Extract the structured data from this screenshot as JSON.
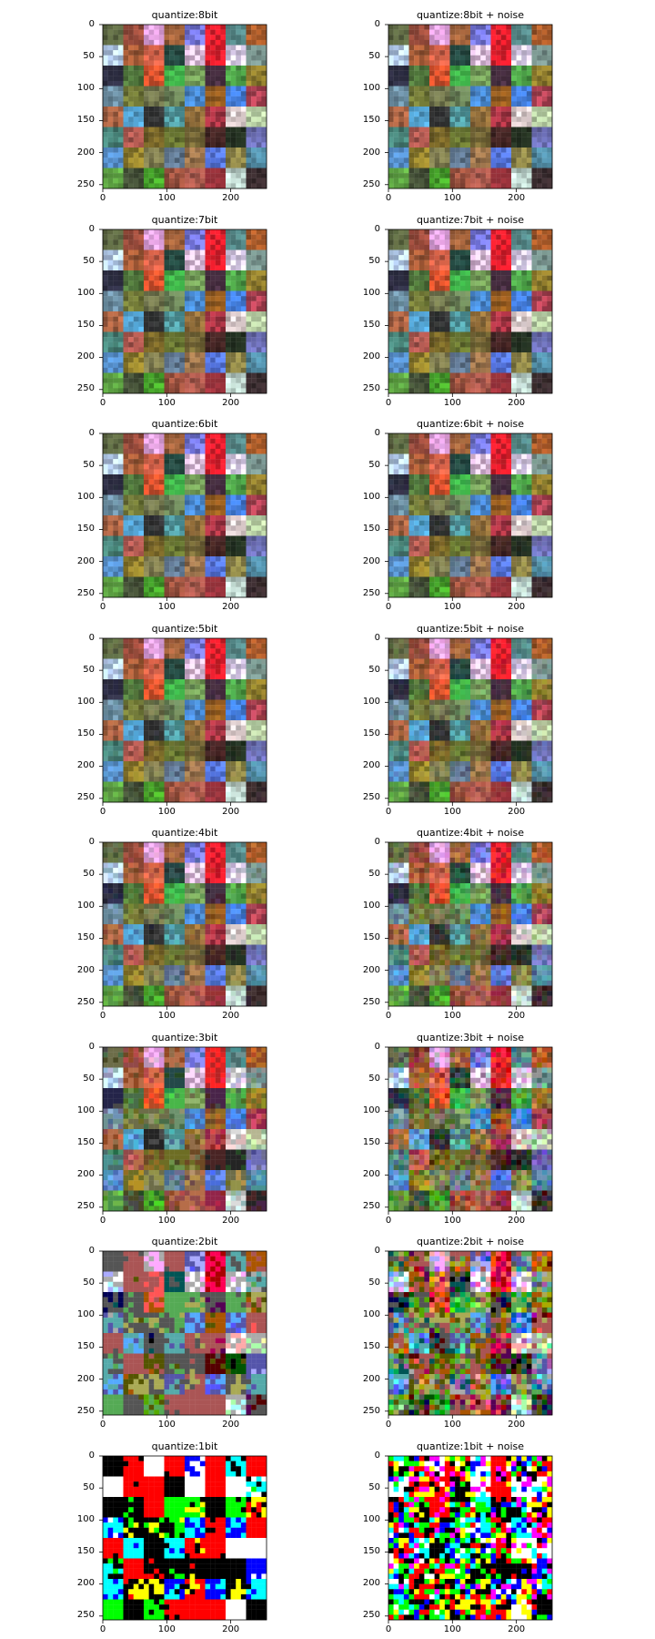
{
  "figure": {
    "layout": {
      "rows": 8,
      "cols": 2
    },
    "image_grid": {
      "tiles_per_side": 8,
      "pixels_per_side": 256
    }
  },
  "chart_data": [
    {
      "type": "image",
      "title": "quantize:8bit",
      "bits": 8,
      "noise": false,
      "xlim": [
        0,
        256
      ],
      "ylim": [
        256,
        0
      ],
      "xticks": [
        0,
        100,
        200
      ],
      "yticks": [
        0,
        50,
        100,
        150,
        200,
        250
      ]
    },
    {
      "type": "image",
      "title": "quantize:8bit + noise",
      "bits": 8,
      "noise": true,
      "xlim": [
        0,
        256
      ],
      "ylim": [
        256,
        0
      ],
      "xticks": [
        0,
        100,
        200
      ],
      "yticks": [
        0,
        50,
        100,
        150,
        200,
        250
      ]
    },
    {
      "type": "image",
      "title": "quantize:7bit",
      "bits": 7,
      "noise": false,
      "xlim": [
        0,
        256
      ],
      "ylim": [
        256,
        0
      ],
      "xticks": [
        0,
        100,
        200
      ],
      "yticks": [
        0,
        50,
        100,
        150,
        200,
        250
      ]
    },
    {
      "type": "image",
      "title": "quantize:7bit + noise",
      "bits": 7,
      "noise": true,
      "xlim": [
        0,
        256
      ],
      "ylim": [
        256,
        0
      ],
      "xticks": [
        0,
        100,
        200
      ],
      "yticks": [
        0,
        50,
        100,
        150,
        200,
        250
      ]
    },
    {
      "type": "image",
      "title": "quantize:6bit",
      "bits": 6,
      "noise": false,
      "xlim": [
        0,
        256
      ],
      "ylim": [
        256,
        0
      ],
      "xticks": [
        0,
        100,
        200
      ],
      "yticks": [
        0,
        50,
        100,
        150,
        200,
        250
      ]
    },
    {
      "type": "image",
      "title": "quantize:6bit + noise",
      "bits": 6,
      "noise": true,
      "xlim": [
        0,
        256
      ],
      "ylim": [
        256,
        0
      ],
      "xticks": [
        0,
        100,
        200
      ],
      "yticks": [
        0,
        50,
        100,
        150,
        200,
        250
      ]
    },
    {
      "type": "image",
      "title": "quantize:5bit",
      "bits": 5,
      "noise": false,
      "xlim": [
        0,
        256
      ],
      "ylim": [
        256,
        0
      ],
      "xticks": [
        0,
        100,
        200
      ],
      "yticks": [
        0,
        50,
        100,
        150,
        200,
        250
      ]
    },
    {
      "type": "image",
      "title": "quantize:5bit + noise",
      "bits": 5,
      "noise": true,
      "xlim": [
        0,
        256
      ],
      "ylim": [
        256,
        0
      ],
      "xticks": [
        0,
        100,
        200
      ],
      "yticks": [
        0,
        50,
        100,
        150,
        200,
        250
      ]
    },
    {
      "type": "image",
      "title": "quantize:4bit",
      "bits": 4,
      "noise": false,
      "xlim": [
        0,
        256
      ],
      "ylim": [
        256,
        0
      ],
      "xticks": [
        0,
        100,
        200
      ],
      "yticks": [
        0,
        50,
        100,
        150,
        200,
        250
      ]
    },
    {
      "type": "image",
      "title": "quantize:4bit + noise",
      "bits": 4,
      "noise": true,
      "xlim": [
        0,
        256
      ],
      "ylim": [
        256,
        0
      ],
      "xticks": [
        0,
        100,
        200
      ],
      "yticks": [
        0,
        50,
        100,
        150,
        200,
        250
      ]
    },
    {
      "type": "image",
      "title": "quantize:3bit",
      "bits": 3,
      "noise": false,
      "xlim": [
        0,
        256
      ],
      "ylim": [
        256,
        0
      ],
      "xticks": [
        0,
        100,
        200
      ],
      "yticks": [
        0,
        50,
        100,
        150,
        200,
        250
      ]
    },
    {
      "type": "image",
      "title": "quantize:3bit + noise",
      "bits": 3,
      "noise": true,
      "xlim": [
        0,
        256
      ],
      "ylim": [
        256,
        0
      ],
      "xticks": [
        0,
        100,
        200
      ],
      "yticks": [
        0,
        50,
        100,
        150,
        200,
        250
      ]
    },
    {
      "type": "image",
      "title": "quantize:2bit",
      "bits": 2,
      "noise": false,
      "xlim": [
        0,
        256
      ],
      "ylim": [
        256,
        0
      ],
      "xticks": [
        0,
        100,
        200
      ],
      "yticks": [
        0,
        50,
        100,
        150,
        200,
        250
      ]
    },
    {
      "type": "image",
      "title": "quantize:2bit + noise",
      "bits": 2,
      "noise": true,
      "xlim": [
        0,
        256
      ],
      "ylim": [
        256,
        0
      ],
      "xticks": [
        0,
        100,
        200
      ],
      "yticks": [
        0,
        50,
        100,
        150,
        200,
        250
      ]
    },
    {
      "type": "image",
      "title": "quantize:1bit",
      "bits": 1,
      "noise": false,
      "xlim": [
        0,
        256
      ],
      "ylim": [
        256,
        0
      ],
      "xticks": [
        0,
        100,
        200
      ],
      "yticks": [
        0,
        50,
        100,
        150,
        200,
        250
      ]
    },
    {
      "type": "image",
      "title": "quantize:1bit + noise",
      "bits": 1,
      "noise": true,
      "xlim": [
        0,
        256
      ],
      "ylim": [
        256,
        0
      ],
      "xticks": [
        0,
        100,
        200
      ],
      "yticks": [
        0,
        50,
        100,
        150,
        200,
        250
      ]
    }
  ]
}
